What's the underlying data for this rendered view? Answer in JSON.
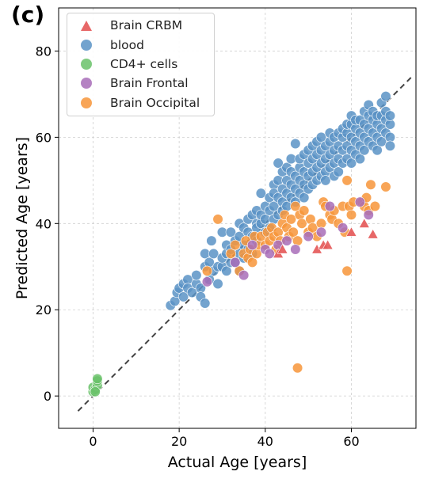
{
  "panel_label": "(c)",
  "legend": {
    "items": [
      {
        "name": "Brain CRBM",
        "marker": "triangle",
        "color": "#e45756"
      },
      {
        "name": "blood",
        "marker": "circle",
        "color": "#5b93c5"
      },
      {
        "name": "CD4+ cells",
        "marker": "circle",
        "color": "#6ac26a"
      },
      {
        "name": "Brain Frontal",
        "marker": "circle",
        "color": "#a86db8"
      },
      {
        "name": "Brain Occipital",
        "marker": "circle",
        "color": "#f7953a"
      }
    ]
  },
  "chart_data": {
    "type": "scatter",
    "title": "",
    "xlabel": "Actual Age [years]",
    "ylabel": "Predicted Age [years]",
    "xlim": [
      -8,
      75
    ],
    "ylim": [
      -7.5,
      90
    ],
    "xticks": [
      0,
      20,
      40,
      60
    ],
    "yticks": [
      0,
      20,
      40,
      60,
      80
    ],
    "grid": true,
    "legend_position": "top-left",
    "reference_line": {
      "style": "dashed",
      "color": "#444444",
      "from": [
        -3.5,
        -3.5
      ],
      "to": [
        74.5,
        74.5
      ]
    },
    "series": [
      {
        "name": "blood",
        "marker": "circle",
        "color": "#5b93c5",
        "points": [
          [
            18,
            21
          ],
          [
            19,
            22
          ],
          [
            19.5,
            24
          ],
          [
            20,
            25
          ],
          [
            21,
            23
          ],
          [
            21,
            26
          ],
          [
            22,
            27
          ],
          [
            22,
            25
          ],
          [
            23,
            24
          ],
          [
            24,
            26
          ],
          [
            24,
            28
          ],
          [
            25,
            25
          ],
          [
            25,
            23
          ],
          [
            26,
            21.5
          ],
          [
            26,
            30
          ],
          [
            26,
            33
          ],
          [
            27,
            27
          ],
          [
            27,
            31
          ],
          [
            27.5,
            36
          ],
          [
            28,
            29
          ],
          [
            28,
            33
          ],
          [
            29,
            30
          ],
          [
            29,
            26
          ],
          [
            30,
            30
          ],
          [
            30,
            32
          ],
          [
            30,
            38
          ],
          [
            31,
            29
          ],
          [
            31,
            35
          ],
          [
            31,
            33
          ],
          [
            32,
            34
          ],
          [
            32,
            31
          ],
          [
            32,
            38
          ],
          [
            33,
            36
          ],
          [
            33,
            31
          ],
          [
            34,
            33
          ],
          [
            34,
            37
          ],
          [
            34,
            40
          ],
          [
            34,
            29
          ],
          [
            35,
            35
          ],
          [
            35,
            32
          ],
          [
            35,
            39
          ],
          [
            36,
            38
          ],
          [
            36,
            34
          ],
          [
            36,
            41
          ],
          [
            37,
            37
          ],
          [
            37,
            42
          ],
          [
            37,
            33
          ],
          [
            38,
            40
          ],
          [
            38,
            36
          ],
          [
            38,
            43
          ],
          [
            38,
            39
          ],
          [
            39,
            40
          ],
          [
            39,
            42
          ],
          [
            39,
            47
          ],
          [
            40,
            38
          ],
          [
            40,
            44
          ],
          [
            40,
            41
          ],
          [
            41,
            43
          ],
          [
            41,
            46
          ],
          [
            41,
            39
          ],
          [
            42,
            44
          ],
          [
            42,
            49
          ],
          [
            42,
            41
          ],
          [
            42,
            47
          ],
          [
            43,
            46
          ],
          [
            43,
            50
          ],
          [
            43,
            42
          ],
          [
            43,
            54
          ],
          [
            44,
            45
          ],
          [
            44,
            48
          ],
          [
            44,
            52
          ],
          [
            44,
            43
          ],
          [
            45,
            47
          ],
          [
            45,
            50
          ],
          [
            45,
            53
          ],
          [
            45,
            44
          ],
          [
            46,
            49
          ],
          [
            46,
            46
          ],
          [
            46,
            52
          ],
          [
            46,
            55
          ],
          [
            47,
            48
          ],
          [
            47,
            51
          ],
          [
            47,
            45
          ],
          [
            47,
            58.5
          ],
          [
            48,
            50
          ],
          [
            48,
            53
          ],
          [
            48,
            47
          ],
          [
            48,
            55
          ],
          [
            49,
            49
          ],
          [
            49,
            52
          ],
          [
            49,
            56
          ],
          [
            49,
            46
          ],
          [
            50,
            51
          ],
          [
            50,
            54
          ],
          [
            50,
            48
          ],
          [
            50,
            57
          ],
          [
            51,
            52
          ],
          [
            51,
            55
          ],
          [
            51,
            49
          ],
          [
            51,
            58
          ],
          [
            52,
            53
          ],
          [
            52,
            50
          ],
          [
            52,
            56
          ],
          [
            52,
            59
          ],
          [
            53,
            54
          ],
          [
            53,
            51
          ],
          [
            53,
            57
          ],
          [
            53,
            60
          ],
          [
            54,
            55
          ],
          [
            54,
            52
          ],
          [
            54,
            58
          ],
          [
            54,
            50
          ],
          [
            55,
            56
          ],
          [
            55,
            53
          ],
          [
            55,
            59
          ],
          [
            55,
            61
          ],
          [
            56,
            57
          ],
          [
            56,
            54
          ],
          [
            56,
            60
          ],
          [
            56,
            51
          ],
          [
            57,
            58
          ],
          [
            57,
            55
          ],
          [
            57,
            61
          ],
          [
            57,
            52
          ],
          [
            58,
            57
          ],
          [
            58,
            60
          ],
          [
            58,
            54
          ],
          [
            58,
            62
          ],
          [
            59,
            58
          ],
          [
            59,
            55
          ],
          [
            59,
            61
          ],
          [
            59,
            63
          ],
          [
            60,
            60
          ],
          [
            60,
            57
          ],
          [
            60,
            63
          ],
          [
            60,
            54
          ],
          [
            60,
            65
          ],
          [
            61,
            59
          ],
          [
            61,
            56
          ],
          [
            61,
            62
          ],
          [
            61,
            64
          ],
          [
            62,
            61
          ],
          [
            62,
            58
          ],
          [
            62,
            64
          ],
          [
            62,
            55
          ],
          [
            63,
            60
          ],
          [
            63,
            63
          ],
          [
            63,
            66
          ],
          [
            63,
            57
          ],
          [
            64,
            62
          ],
          [
            64,
            59
          ],
          [
            64,
            65
          ],
          [
            64,
            67.5
          ],
          [
            65,
            61
          ],
          [
            65,
            64
          ],
          [
            65,
            58
          ],
          [
            65,
            66
          ],
          [
            66,
            63
          ],
          [
            66,
            60
          ],
          [
            66,
            65
          ],
          [
            66,
            57
          ],
          [
            67,
            62
          ],
          [
            67,
            65
          ],
          [
            67,
            68
          ],
          [
            67,
            59
          ],
          [
            68,
            64
          ],
          [
            68,
            61
          ],
          [
            68,
            66
          ],
          [
            68,
            69.5
          ],
          [
            69,
            63
          ],
          [
            69,
            60
          ],
          [
            69,
            65
          ],
          [
            69,
            58
          ]
        ]
      },
      {
        "name": "Brain Occipital",
        "marker": "circle",
        "color": "#f7953a",
        "points": [
          [
            29,
            41
          ],
          [
            26.5,
            29
          ],
          [
            32,
            33
          ],
          [
            33,
            35
          ],
          [
            34,
            29
          ],
          [
            35,
            33
          ],
          [
            35.5,
            36
          ],
          [
            36,
            32
          ],
          [
            36.5,
            34
          ],
          [
            37,
            31
          ],
          [
            37.5,
            37
          ],
          [
            38,
            33
          ],
          [
            38.5,
            35
          ],
          [
            39,
            37
          ],
          [
            40,
            35
          ],
          [
            40.5,
            38
          ],
          [
            41,
            36
          ],
          [
            41.5,
            39
          ],
          [
            42,
            37
          ],
          [
            42.5,
            34
          ],
          [
            43,
            38
          ],
          [
            43.5,
            36
          ],
          [
            44,
            40
          ],
          [
            44.5,
            42
          ],
          [
            45,
            39
          ],
          [
            45.5,
            37
          ],
          [
            46,
            41
          ],
          [
            46.5,
            38
          ],
          [
            47,
            44
          ],
          [
            47.5,
            36
          ],
          [
            48,
            42
          ],
          [
            48.5,
            40
          ],
          [
            49,
            43
          ],
          [
            50,
            38
          ],
          [
            50.5,
            41
          ],
          [
            51,
            39
          ],
          [
            52,
            37
          ],
          [
            53,
            40
          ],
          [
            53.5,
            45
          ],
          [
            54,
            44
          ],
          [
            55,
            42
          ],
          [
            55.5,
            41
          ],
          [
            56,
            43
          ],
          [
            57,
            40
          ],
          [
            58,
            44
          ],
          [
            58.5,
            38
          ],
          [
            59,
            50
          ],
          [
            59.5,
            44
          ],
          [
            60,
            42
          ],
          [
            60.5,
            45
          ],
          [
            62.5,
            45
          ],
          [
            63,
            44
          ],
          [
            63.5,
            46
          ],
          [
            64,
            43
          ],
          [
            64.5,
            49
          ],
          [
            65.5,
            44
          ],
          [
            68,
            48.5
          ],
          [
            59,
            29
          ],
          [
            47.5,
            6.5
          ]
        ]
      },
      {
        "name": "Brain Frontal",
        "marker": "circle",
        "color": "#a86db8",
        "points": [
          [
            26.5,
            26.5
          ],
          [
            33,
            31
          ],
          [
            35,
            28
          ],
          [
            37,
            35
          ],
          [
            40,
            34
          ],
          [
            41,
            33
          ],
          [
            43,
            35
          ],
          [
            45,
            36
          ],
          [
            47,
            34
          ],
          [
            50,
            37
          ],
          [
            53,
            38
          ],
          [
            55,
            44
          ],
          [
            58,
            39
          ],
          [
            62,
            45
          ],
          [
            64,
            42
          ]
        ]
      },
      {
        "name": "Brain CRBM",
        "marker": "triangle",
        "color": "#e45756",
        "points": [
          [
            43,
            33
          ],
          [
            44,
            34
          ],
          [
            52,
            34
          ],
          [
            53.5,
            35
          ],
          [
            54.5,
            35
          ],
          [
            60,
            38
          ],
          [
            63,
            40
          ],
          [
            65,
            37.5
          ]
        ]
      },
      {
        "name": "CD4+ cells",
        "marker": "circle",
        "color": "#6ac26a",
        "points": [
          [
            0,
            1
          ],
          [
            0,
            2
          ],
          [
            0.5,
            1.5
          ],
          [
            1,
            2.5
          ],
          [
            1,
            3.5
          ],
          [
            1,
            4
          ],
          [
            0.5,
            1
          ]
        ]
      }
    ]
  }
}
